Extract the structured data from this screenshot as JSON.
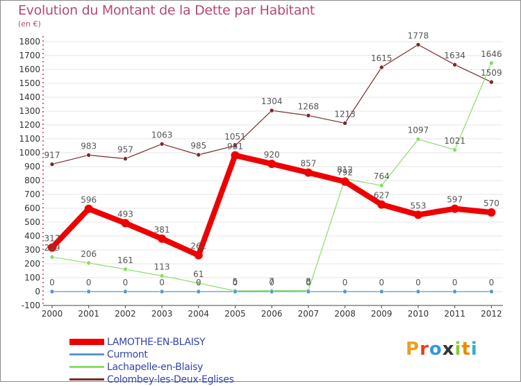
{
  "chart_data": {
    "type": "line",
    "title": "Evolution du Montant de la Dette par Habitant",
    "unit_label": "(en €)",
    "categories": [
      "2000",
      "2001",
      "2002",
      "2003",
      "2004",
      "2005",
      "2006",
      "2007",
      "2008",
      "2009",
      "2010",
      "2011",
      "2012"
    ],
    "y_ticks": [
      -100,
      0,
      100,
      200,
      300,
      400,
      500,
      600,
      700,
      800,
      900,
      1000,
      1100,
      1200,
      1300,
      1400,
      1500,
      1600,
      1700,
      1800
    ],
    "ylim": [
      -100,
      1850
    ],
    "grid": "horizontal",
    "legend_position": "bottom-left",
    "series": [
      {
        "name": "LAMOTHE-EN-BLAISY",
        "color": "#ee0000",
        "values": [
          317,
          596,
          493,
          381,
          262,
          981,
          920,
          857,
          792,
          627,
          553,
          597,
          570
        ]
      },
      {
        "name": "Curmont",
        "color": "#5599cc",
        "values": [
          0,
          0,
          0,
          0,
          0,
          0,
          0,
          0,
          0,
          0,
          0,
          0,
          0
        ]
      },
      {
        "name": "Lachapelle-en-Blaisy",
        "color": "#88dd66",
        "values": [
          249,
          206,
          161,
          113,
          61,
          5,
          7,
          8,
          812,
          764,
          1097,
          1021,
          1646
        ]
      },
      {
        "name": "Colombey-les-Deux-Eglises",
        "color": "#7a2a2a",
        "values": [
          917,
          983,
          957,
          1063,
          985,
          1051,
          1304,
          1268,
          1213,
          1615,
          1778,
          1634,
          1509
        ]
      }
    ]
  },
  "brand": {
    "text": "Proxiti",
    "colors": [
      "#e8a020",
      "#e84020",
      "#3399dd",
      "#333333",
      "#88cc33",
      "#ee8800",
      "#33aadd"
    ]
  }
}
